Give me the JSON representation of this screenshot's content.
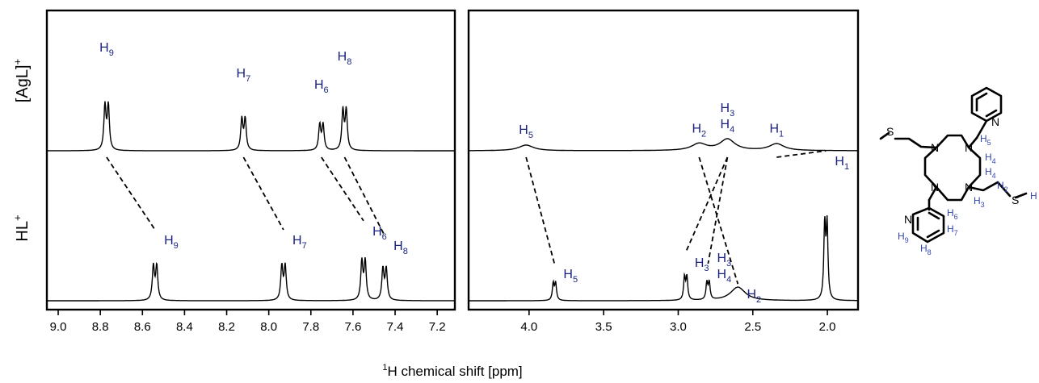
{
  "figure": {
    "xlabel_sup": "1",
    "xlabel_main": "H chemical shift [ppm]",
    "row_labels": {
      "top": "[AgL]",
      "top_sup": "+",
      "bottom": "HL",
      "bottom_sup": "+"
    },
    "colors": {
      "line": "#000000",
      "peak_label": "#1a237e",
      "structure_label": "#3347b0"
    }
  },
  "chart_data": [
    {
      "type": "line",
      "panel": "aromatic",
      "xlim": [
        9.05,
        7.12
      ],
      "xticks": [
        "9.0",
        "8.8",
        "8.6",
        "8.4",
        "8.2",
        "8.0",
        "7.8",
        "7.6",
        "7.4",
        "7.2"
      ],
      "series": [
        {
          "name": "[AgL]+",
          "peaks": [
            {
              "label": "H",
              "sub": "9",
              "shift": 8.77,
              "height": 0.78
            },
            {
              "label": "H",
              "sub": "7",
              "shift": 8.12,
              "height": 0.55
            },
            {
              "label": "H",
              "sub": "6",
              "shift": 7.75,
              "height": 0.45
            },
            {
              "label": "H",
              "sub": "8",
              "shift": 7.64,
              "height": 0.7
            }
          ]
        },
        {
          "name": "HL+",
          "peaks": [
            {
              "label": "H",
              "sub": "9",
              "shift": 8.54,
              "height": 0.6
            },
            {
              "label": "H",
              "sub": "7",
              "shift": 7.93,
              "height": 0.6
            },
            {
              "label": "H",
              "sub": "6",
              "shift": 7.55,
              "height": 0.68
            },
            {
              "label": "H",
              "sub": "8",
              "shift": 7.45,
              "height": 0.55
            }
          ]
        }
      ]
    },
    {
      "type": "line",
      "panel": "aliphatic",
      "xlim": [
        4.4,
        1.8
      ],
      "xticks": [
        "4.0",
        "3.5",
        "3.0",
        "2.5",
        "2.0"
      ],
      "series": [
        {
          "name": "[AgL]+",
          "peaks": [
            {
              "label": "H",
              "sub": "5",
              "shift": 4.02,
              "height": 0.05
            },
            {
              "label": "H",
              "sub": "2",
              "shift": 2.86,
              "height": 0.06
            },
            {
              "label": "H",
              "sub": "3",
              "sub2": "4",
              "shift": 2.67,
              "height": 0.1
            },
            {
              "label": "H",
              "sub": "1",
              "shift": 2.34,
              "height": 0.06
            }
          ]
        },
        {
          "name": "HL+",
          "peaks": [
            {
              "label": "H",
              "sub": "5",
              "shift": 3.83,
              "height": 0.3
            },
            {
              "label": "H",
              "sub": "3",
              "shift": 2.95,
              "height": 0.4
            },
            {
              "label": "H",
              "sub": "3",
              "sub2": "4",
              "shift": 2.8,
              "height": 0.3
            },
            {
              "label": "H",
              "sub": "2",
              "shift": 2.6,
              "height": 0.12
            },
            {
              "label": "H",
              "sub": "1",
              "shift": 2.01,
              "height": 1.3
            }
          ]
        }
      ]
    }
  ],
  "structure_labels": [
    "H",
    "5",
    "4",
    "4",
    "2",
    "3",
    "6",
    "7",
    "9",
    "8",
    "N",
    "S"
  ]
}
